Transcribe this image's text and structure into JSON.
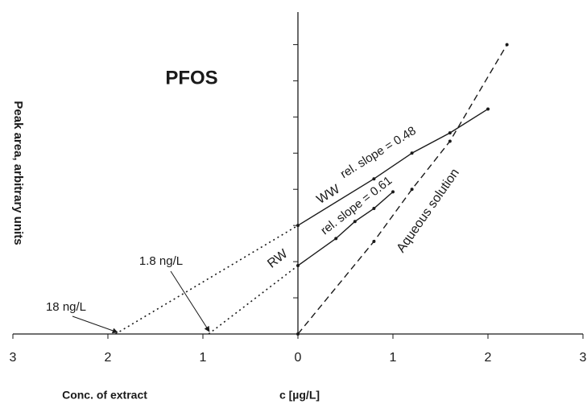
{
  "chart_data": {
    "type": "line",
    "title": "PFOS",
    "y_label": "Peak area, arbitrary units",
    "x_label": "c [µg/L]",
    "x_label_left": "Conc. of extract",
    "xlim": [
      -3,
      3
    ],
    "xticks": [
      {
        "value": -3,
        "label": "3"
      },
      {
        "value": -2,
        "label": "2"
      },
      {
        "value": -1,
        "label": "1"
      },
      0,
      1,
      2,
      3
    ],
    "ylim": [
      0,
      8.9
    ],
    "yticks": [
      0,
      1,
      2,
      3,
      4,
      5,
      6,
      7,
      8
    ],
    "series": [
      {
        "name": "WW",
        "color": "#1a1a1a",
        "dash": "solid",
        "x": [
          0,
          0.8,
          1.2,
          1.6,
          2.0
        ],
        "values": [
          3.0,
          4.29,
          5.0,
          5.56,
          6.22
        ]
      },
      {
        "name": "RW",
        "color": "#1a1a1a",
        "dash": "solid",
        "x": [
          0,
          0.4,
          0.6,
          0.8,
          1.0
        ],
        "values": [
          1.89,
          2.64,
          3.11,
          3.47,
          3.93
        ]
      },
      {
        "name": "Aqueous solution",
        "color": "#1a1a1a",
        "dash": "dashed",
        "x": [
          0,
          0.8,
          1.2,
          1.6,
          2.2
        ],
        "values": [
          0,
          2.56,
          4.0,
          5.33,
          8.0
        ]
      }
    ],
    "extrapolations": [
      {
        "x": [
          -1.92,
          0
        ],
        "values": [
          0,
          3.0
        ]
      },
      {
        "x": [
          -0.94,
          0
        ],
        "values": [
          0,
          1.89
        ]
      }
    ],
    "annotations": [
      "rel. slope = 0.48",
      "rel. slope = 0.61",
      "18 ng/L",
      "1.8 ng/L"
    ]
  }
}
